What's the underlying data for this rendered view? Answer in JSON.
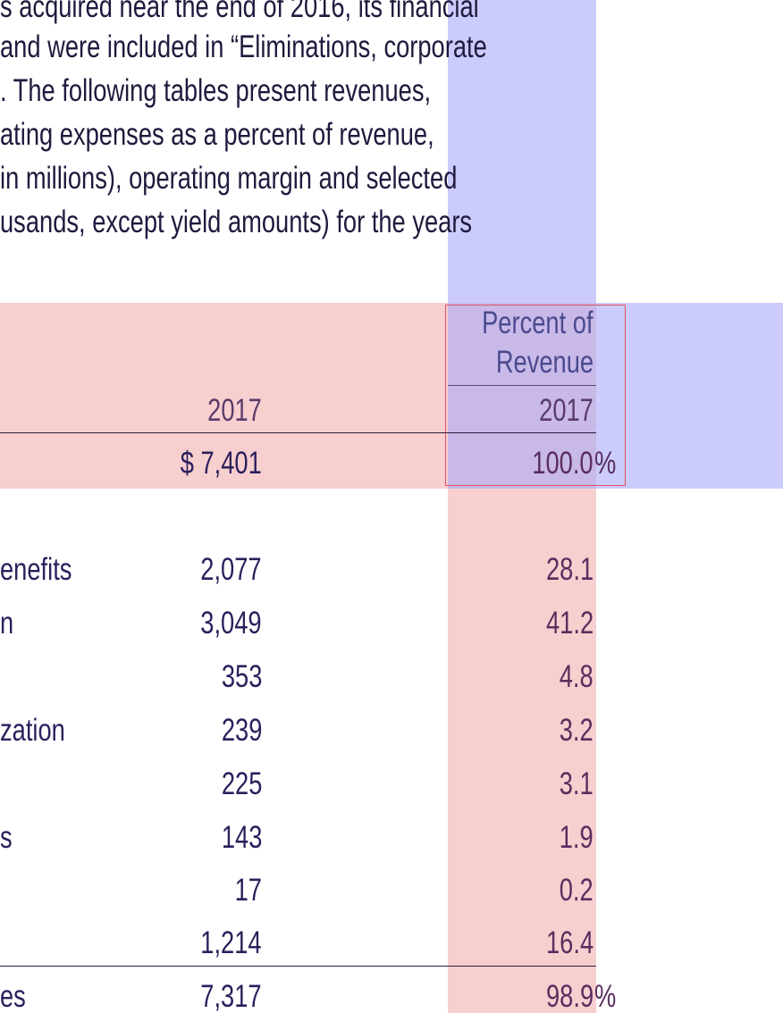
{
  "paragraph": {
    "lines": [
      "s acquired near the end of 2016, its financial",
      "and were included in “Eliminations, corporate",
      ". The following tables present revenues,",
      "ating expenses as a percent of revenue,",
      " in millions), operating margin and selected",
      "usands, except yield amounts) for the years"
    ]
  },
  "table": {
    "header": {
      "year": "2017",
      "percent_heading_line1": "Percent of",
      "percent_heading_line2": "Revenue",
      "percent_year": "2017"
    },
    "revenue_row": {
      "amount": "$ 7,401",
      "percent": "100.0",
      "percent_sign": "%"
    },
    "rows": [
      {
        "label": "enefits",
        "amount": "2,077",
        "percent": "28.1"
      },
      {
        "label": "n",
        "amount": "3,049",
        "percent": "41.2"
      },
      {
        "label": "",
        "amount": "353",
        "percent": "4.8"
      },
      {
        "label": "zation",
        "amount": "239",
        "percent": "3.2"
      },
      {
        "label": "",
        "amount": "225",
        "percent": "3.1"
      },
      {
        "label": "s",
        "amount": "143",
        "percent": "1.9"
      },
      {
        "label": "",
        "amount": "17",
        "percent": "0.2"
      },
      {
        "label": "",
        "amount": "1,214",
        "percent": "16.4"
      }
    ],
    "total_row": {
      "label": "es",
      "amount": "7,317",
      "percent": "98.9",
      "percent_sign": "%"
    }
  },
  "colors": {
    "highlight_red": "#f7cfcf",
    "highlight_blue": "#a8aafa",
    "box_border": "#e0505a"
  }
}
